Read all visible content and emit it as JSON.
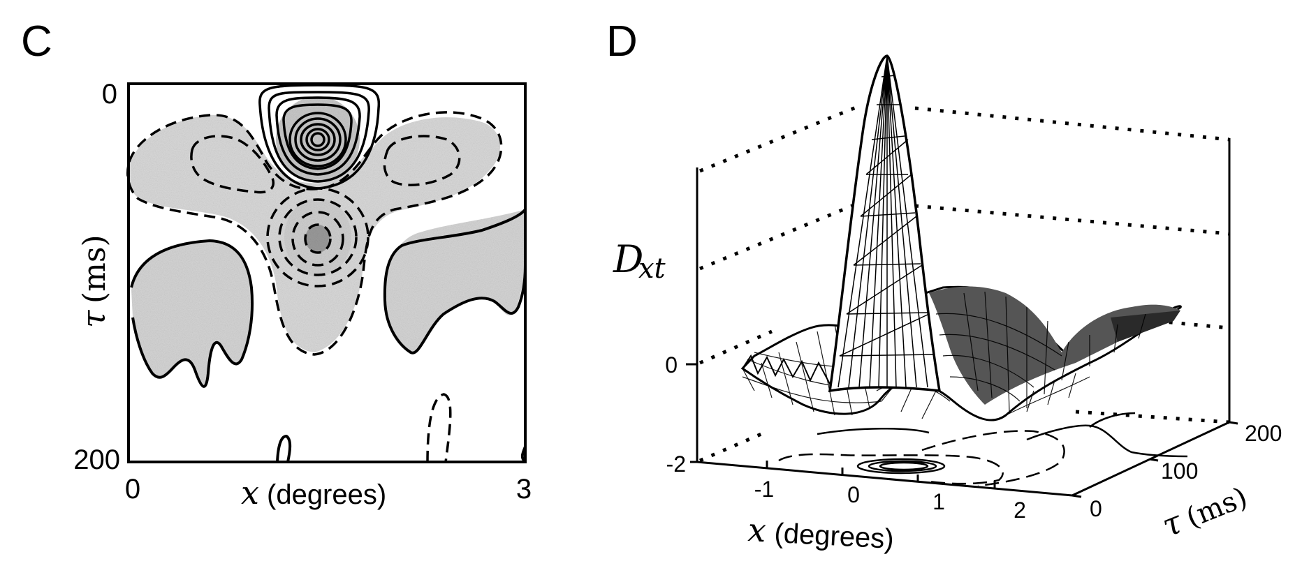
{
  "chart_data": [
    {
      "panel": "C",
      "type": "contour",
      "xlabel_var": "x",
      "xlabel_unit": "(degrees)",
      "ylabel_var": "τ",
      "ylabel_unit": "(ms)",
      "xlim": [
        0,
        3
      ],
      "ylim": [
        0,
        200
      ],
      "x_ticks": [
        "0",
        "3"
      ],
      "y_ticks": [
        "0",
        "200"
      ],
      "y_inverted": true,
      "grid": false,
      "legend": "none",
      "features": [
        {
          "kind": "positive-peak",
          "x": 1.5,
          "y": 30
        },
        {
          "kind": "negative-lobe",
          "x": 0.7,
          "y": 40
        },
        {
          "kind": "negative-lobe",
          "x": 2.3,
          "y": 40
        },
        {
          "kind": "negative-center",
          "x": 1.45,
          "y": 82
        },
        {
          "kind": "positive-lobe",
          "x": 0.6,
          "y": 120
        },
        {
          "kind": "positive-lobe",
          "x": 2.5,
          "y": 110
        }
      ]
    },
    {
      "panel": "D",
      "type": "surface",
      "zlabel_var": "D",
      "zlabel_sub": "xt",
      "xlabel_var": "x",
      "xlabel_unit": "(degrees)",
      "ylabel_var": "τ",
      "ylabel_unit": "(ms)",
      "x_ticks": [
        "-2",
        "-1",
        "0",
        "1",
        "2"
      ],
      "y_ticks": [
        "0",
        "100",
        "200"
      ],
      "z_ticks": [
        "0"
      ],
      "xlim": [
        -2,
        2
      ],
      "ylim": [
        0,
        200
      ],
      "peak": {
        "x": 0,
        "tau": 30
      }
    }
  ]
}
